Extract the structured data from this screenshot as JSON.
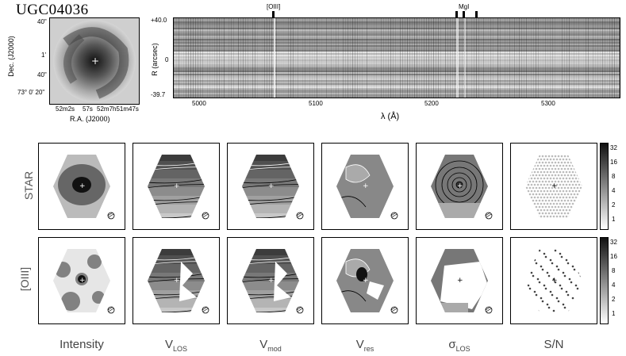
{
  "galaxy_name": "UGC04036",
  "thumbnail": {
    "y_label": "Dec. (J2000)",
    "x_label": "R.A. (J2000)",
    "y_ticks": [
      "40\"",
      "1'",
      "40\"",
      "73° 0' 20\""
    ],
    "x_ticks": [
      "52m2s",
      "57s",
      "52m7h51m47s"
    ]
  },
  "spectrum": {
    "y_label": "R (arcsec)",
    "x_label": "λ (Å)",
    "y_ticks": [
      "+40.0",
      "0",
      "-39.7"
    ],
    "x_ticks": [
      "5000",
      "5100",
      "5200",
      "5300"
    ],
    "line_markers": [
      "[OIII]",
      "MgI"
    ]
  },
  "grid": {
    "row_labels": [
      "STAR",
      "[OIII]"
    ],
    "col_labels": [
      {
        "main": "Intensity",
        "sub": ""
      },
      {
        "main": "V",
        "sub": "LOS"
      },
      {
        "main": "V",
        "sub": "mod"
      },
      {
        "main": "V",
        "sub": "res"
      },
      {
        "main": "σ",
        "sub": "LOS"
      },
      {
        "main": "S/N",
        "sub": ""
      }
    ],
    "colorbar_ticks": [
      "32",
      "16",
      "8",
      "4",
      "2",
      "1"
    ]
  },
  "colors": {
    "dark": "#222222",
    "mid": "#888888",
    "light": "#dddddd",
    "contour_white": "#ffffff"
  }
}
